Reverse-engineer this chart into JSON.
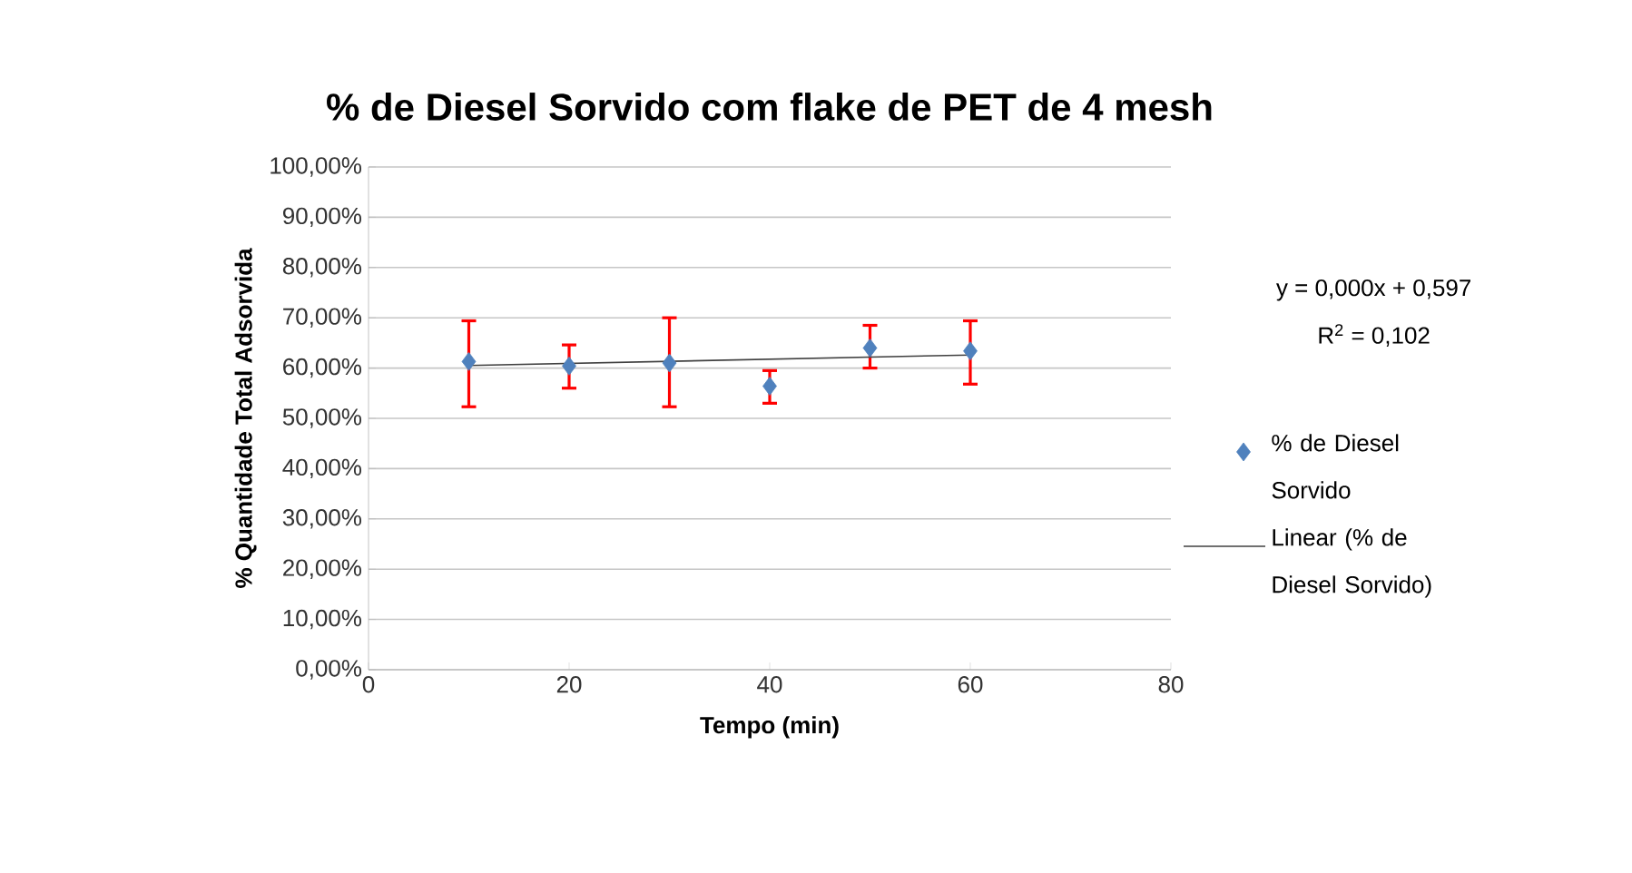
{
  "chart_data": {
    "type": "scatter",
    "title": "% de Diesel Sorvido com flake de PET  de 4 mesh",
    "xlabel": "Tempo (min)",
    "ylabel": "% Quantidade Total Adsorvida",
    "xlim": [
      0,
      80
    ],
    "xticks": [
      0,
      20,
      40,
      60,
      80
    ],
    "ylim": [
      0,
      100
    ],
    "yticks": [
      {
        "value": 0,
        "label": "0,00%"
      },
      {
        "value": 10,
        "label": "10,00%"
      },
      {
        "value": 20,
        "label": "20,00%"
      },
      {
        "value": 30,
        "label": "30,00%"
      },
      {
        "value": 40,
        "label": "40,00%"
      },
      {
        "value": 50,
        "label": "50,00%"
      },
      {
        "value": 60,
        "label": "60,00%"
      },
      {
        "value": 70,
        "label": "70,00%"
      },
      {
        "value": 80,
        "label": "80,00%"
      },
      {
        "value": 90,
        "label": "90,00%"
      },
      {
        "value": 100,
        "label": "100,00%"
      }
    ],
    "grid": "y",
    "legend": "right",
    "marker": "diamond",
    "annotations": [
      "y = 0,000x + 0,597",
      "R$^{2}$ = 0,102"
    ],
    "series": [
      {
        "name": "% de Diesel Sorvido",
        "color": "#4f81bd",
        "x": [
          10,
          20,
          30,
          40,
          50,
          60
        ],
        "values": [
          61.3,
          60.4,
          61,
          56.4,
          64,
          63.4
        ],
        "errors": [
          [
            52.3,
            69.4
          ],
          [
            56,
            64.6
          ],
          [
            52.3,
            70
          ],
          [
            53,
            59.5
          ],
          [
            60,
            68.5
          ],
          [
            56.8,
            69.4
          ]
        ]
      },
      {
        "name": "Linear (% de Diesel Sorvido)",
        "type": "line",
        "marker": "none",
        "color": "#404040",
        "x": [
          10,
          60
        ],
        "values": [
          60.5,
          62.6
        ]
      }
    ]
  }
}
